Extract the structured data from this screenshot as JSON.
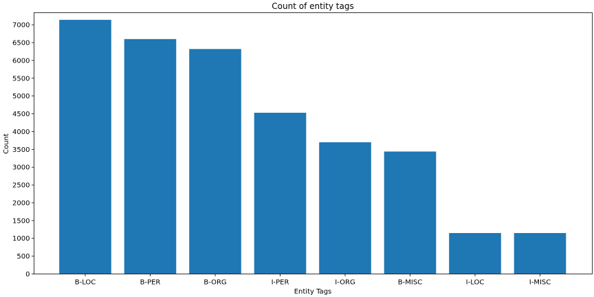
{
  "chart_data": {
    "type": "bar",
    "title": "Count of entity tags",
    "xlabel": "Entity Tags",
    "ylabel": "Count",
    "categories": [
      "B-LOC",
      "B-PER",
      "B-ORG",
      "I-PER",
      "I-ORG",
      "B-MISC",
      "I-LOC",
      "I-MISC"
    ],
    "values": [
      7140,
      6600,
      6320,
      4530,
      3700,
      3440,
      1150,
      1150
    ],
    "ylim": [
      0,
      7340
    ],
    "yticks": [
      0,
      500,
      1000,
      1500,
      2000,
      2500,
      3000,
      3500,
      4000,
      4500,
      5000,
      5500,
      6000,
      6500,
      7000
    ],
    "grid": false,
    "bar_color": "#1f77b4"
  }
}
